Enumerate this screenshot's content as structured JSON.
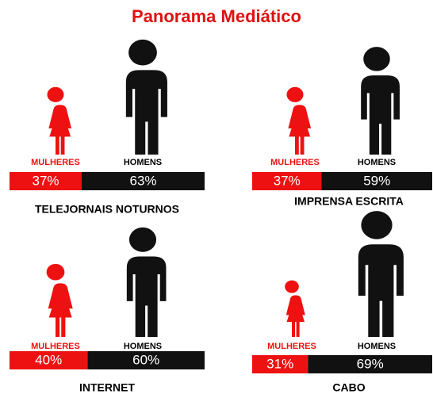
{
  "title": "Panorama Mediático",
  "chart_data": [
    {
      "type": "pictograph",
      "title": "TELEJORNAIS NOTURNOS",
      "categories": [
        "MULHERES",
        "HOMENS"
      ],
      "values": [
        37,
        63
      ],
      "value_labels": [
        "37%",
        "63%"
      ],
      "colors": [
        "#ee1111",
        "#111111"
      ]
    },
    {
      "type": "pictograph",
      "title": "IMPRENSA ESCRITA",
      "categories": [
        "MULHERES",
        "HOMENS"
      ],
      "values": [
        37,
        59
      ],
      "value_labels": [
        "37%",
        "59%"
      ],
      "colors": [
        "#ee1111",
        "#111111"
      ]
    },
    {
      "type": "pictograph",
      "title": "INTERNET",
      "categories": [
        "MULHERES",
        "HOMENS"
      ],
      "values": [
        40,
        60
      ],
      "value_labels": [
        "40%",
        "60%"
      ],
      "colors": [
        "#ee1111",
        "#111111"
      ]
    },
    {
      "type": "pictograph",
      "title": "CABO",
      "categories": [
        "MULHERES",
        "HOMENS"
      ],
      "values": [
        31,
        69
      ],
      "value_labels": [
        "31%",
        "69%"
      ],
      "colors": [
        "#ee1111",
        "#111111"
      ]
    }
  ]
}
